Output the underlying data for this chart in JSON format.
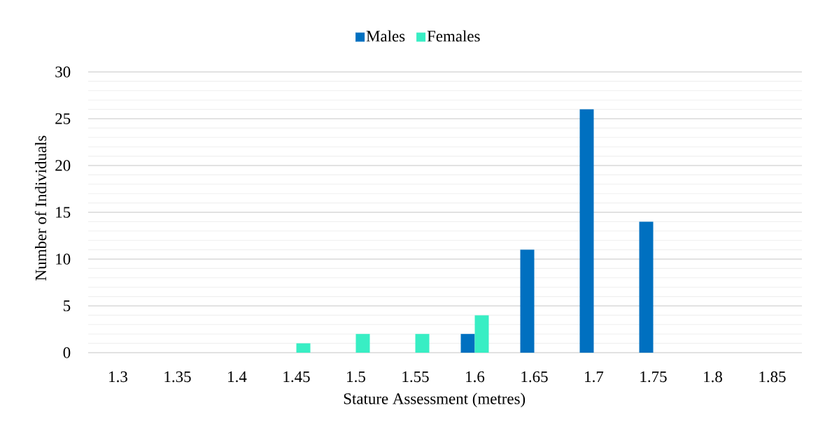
{
  "chart_data": {
    "type": "bar",
    "xlabel": "Stature Assessment (metres)",
    "ylabel": "Number of Individuals",
    "categories": [
      "1.3",
      "1.35",
      "1.4",
      "1.45",
      "1.5",
      "1.55",
      "1.6",
      "1.65",
      "1.7",
      "1.75",
      "1.8",
      "1.85"
    ],
    "series": [
      {
        "name": "Males",
        "color": "#0070c0",
        "values": [
          0,
          0,
          0,
          0,
          0,
          0,
          2,
          11,
          26,
          14,
          0,
          0
        ]
      },
      {
        "name": "Females",
        "color": "#38eec4",
        "values": [
          0,
          0,
          0,
          1,
          2,
          2,
          4,
          0,
          0,
          0,
          0,
          0
        ]
      }
    ],
    "ylim": [
      0,
      30
    ],
    "yticks": [
      0,
      5,
      10,
      15,
      20,
      25,
      30
    ],
    "grid": "y",
    "legend": "top"
  }
}
